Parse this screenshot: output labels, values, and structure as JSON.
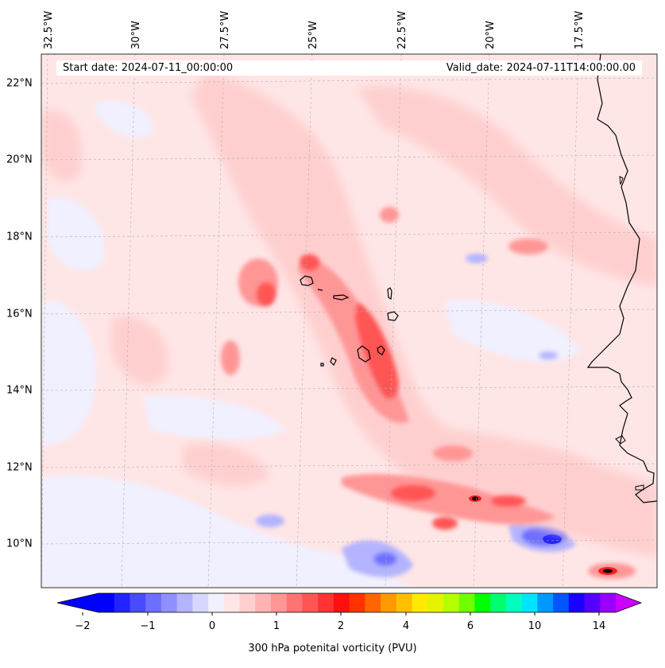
{
  "map": {
    "start_date": "Start date: 2024-07-11_00:00:00",
    "valid_date": "Valid_date: 2024-07-11T14:00:00.00",
    "lat_labels": [
      "22°N",
      "20°N",
      "18°N",
      "16°N",
      "14°N",
      "12°N",
      "10°N"
    ],
    "lon_labels": [
      "32.5°W",
      "30°W",
      "27.5°W",
      "25°W",
      "22.5°W",
      "20°W",
      "17.5°W"
    ],
    "field_name": "300 hPa potenital vorticity (PVU)",
    "colorbar": {
      "tick_labels": [
        "−2",
        "−1",
        "0",
        "1",
        "2",
        "4",
        "6",
        "10",
        "14"
      ],
      "colors": [
        "#0000ff",
        "#2323ff",
        "#4a4aff",
        "#6e6eff",
        "#8f8fff",
        "#b3b3ff",
        "#d6d6ff",
        "#f0f0ff",
        "#ffe6e6",
        "#ffcfcf",
        "#ffb3b3",
        "#ff9696",
        "#ff7373",
        "#ff5555",
        "#ff3333",
        "#ff0f0f",
        "#ff3300",
        "#ff6600",
        "#ff9900",
        "#ffbf00",
        "#ffea00",
        "#e5f200",
        "#b3ff00",
        "#70ff00",
        "#00ff00",
        "#00ff70",
        "#00ffbf",
        "#00e5ff",
        "#0099ff",
        "#0055ff",
        "#1a00ff",
        "#5500ff",
        "#9900ff"
      ],
      "under_color": "#0000ff",
      "over_color": "#cc00ff"
    },
    "colors": {
      "ocean_base": "#ffe6e6",
      "negative_pv": "#f0f0ff",
      "coastline": "#000000",
      "gridline": "#b0b0b0"
    }
  }
}
